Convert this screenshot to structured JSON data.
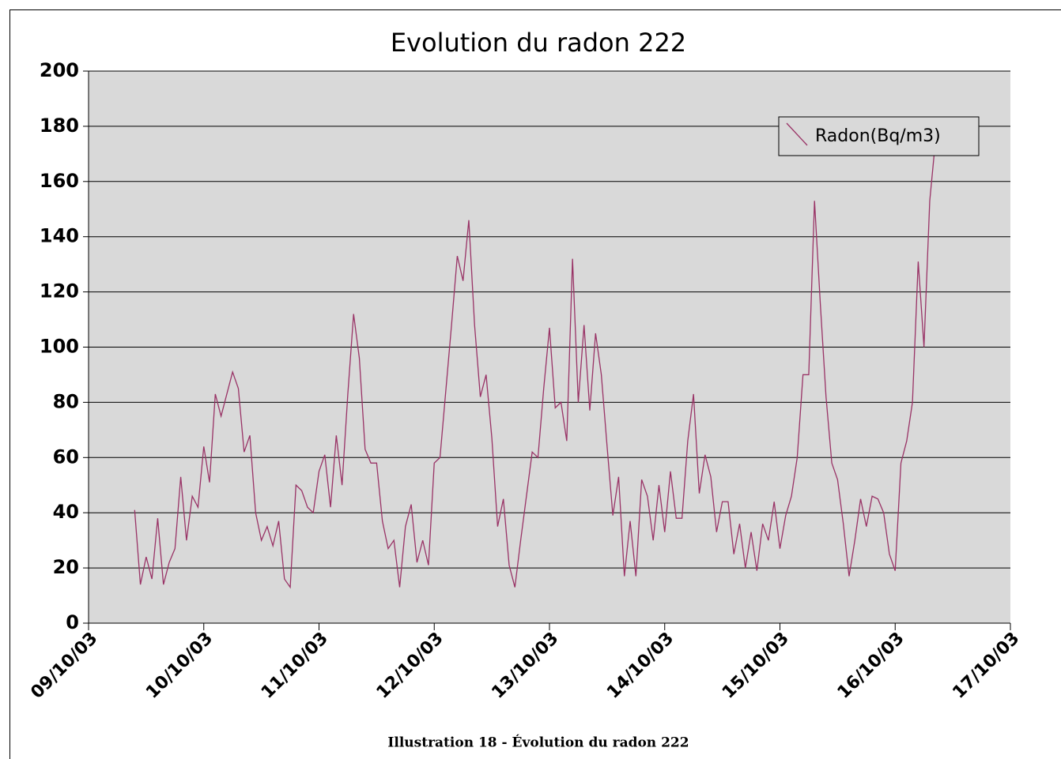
{
  "chart_data": {
    "type": "line",
    "title": "Evolution du radon 222",
    "caption": "Illustration 18 - Évolution du radon 222",
    "legend": "top-right",
    "grid": true,
    "xlim": [
      9,
      17
    ],
    "xticks": [
      {
        "value": 9,
        "label": "09/10/03"
      },
      {
        "value": 10,
        "label": "10/10/03"
      },
      {
        "value": 11,
        "label": "11/10/03"
      },
      {
        "value": 12,
        "label": "12/10/03"
      },
      {
        "value": 13,
        "label": "13/10/03"
      },
      {
        "value": 14,
        "label": "14/10/03"
      },
      {
        "value": 15,
        "label": "15/10/03"
      },
      {
        "value": 16,
        "label": "16/10/03"
      },
      {
        "value": 17,
        "label": "17/10/03"
      }
    ],
    "ylim": [
      0,
      200
    ],
    "yticks": [
      0,
      20,
      40,
      60,
      80,
      100,
      120,
      140,
      160,
      180,
      200
    ],
    "x": [
      9.4,
      9.45,
      9.5,
      9.55,
      9.6,
      9.65,
      9.7,
      9.75,
      9.8,
      9.85,
      9.9,
      9.95,
      10,
      10.05,
      10.1,
      10.15,
      10.2,
      10.25,
      10.3,
      10.35,
      10.4,
      10.45,
      10.5,
      10.55,
      10.6,
      10.65,
      10.7,
      10.75,
      10.8,
      10.85,
      10.9,
      10.95,
      11,
      11.05,
      11.1,
      11.15,
      11.2,
      11.25,
      11.3,
      11.35,
      11.4,
      11.45,
      11.5,
      11.55,
      11.6,
      11.65,
      11.7,
      11.75,
      11.8,
      11.85,
      11.9,
      11.95,
      12,
      12.05,
      12.1,
      12.15,
      12.2,
      12.25,
      12.3,
      12.35,
      12.4,
      12.45,
      12.5,
      12.55,
      12.6,
      12.65,
      12.7,
      12.75,
      12.8,
      12.85,
      12.9,
      12.95,
      13,
      13.05,
      13.1,
      13.15,
      13.2,
      13.25,
      13.3,
      13.35,
      13.4,
      13.45,
      13.5,
      13.55,
      13.6,
      13.65,
      13.7,
      13.75,
      13.8,
      13.85,
      13.9,
      13.95,
      14,
      14.05,
      14.1,
      14.15,
      14.2,
      14.25,
      14.3,
      14.35,
      14.4,
      14.45,
      14.5,
      14.55,
      14.6,
      14.65,
      14.7,
      14.75,
      14.8,
      14.85,
      14.9,
      14.95,
      15,
      15.05,
      15.1,
      15.15,
      15.2,
      15.25,
      15.3,
      15.35,
      15.4,
      15.45,
      15.5,
      15.55,
      15.6,
      15.65,
      15.7,
      15.75,
      15.8,
      15.85,
      15.9,
      15.95,
      16,
      16.05,
      16.1,
      16.15,
      16.2,
      16.25,
      16.3,
      16.35
    ],
    "series": [
      {
        "name": "Radon(Bq/m3)",
        "color": "#993366",
        "values": [
          41,
          14,
          24,
          16,
          38,
          14,
          22,
          27,
          53,
          30,
          46,
          42,
          64,
          51,
          83,
          75,
          83,
          91,
          85,
          62,
          68,
          40,
          30,
          35,
          28,
          37,
          16,
          13,
          50,
          48,
          42,
          40,
          55,
          61,
          42,
          68,
          50,
          83,
          112,
          96,
          63,
          58,
          58,
          37,
          27,
          30,
          13,
          35,
          43,
          22,
          30,
          21,
          58,
          60,
          84,
          108,
          133,
          124,
          146,
          108,
          82,
          90,
          67,
          35,
          45,
          21,
          13,
          30,
          46,
          62,
          60,
          85,
          107,
          78,
          80,
          66,
          132,
          80,
          108,
          77,
          105,
          90,
          64,
          39,
          53,
          17,
          37,
          17,
          52,
          46,
          30,
          50,
          33,
          55,
          38,
          38,
          66,
          83,
          47,
          61,
          53,
          33,
          44,
          44,
          25,
          36,
          20,
          33,
          19,
          36,
          30,
          44,
          27,
          39,
          46,
          60,
          90,
          90,
          153,
          116,
          82,
          58,
          52,
          36,
          17,
          30,
          45,
          35,
          46,
          45,
          40,
          25,
          19,
          58,
          66,
          80,
          131,
          100,
          153,
          175
        ]
      }
    ]
  }
}
